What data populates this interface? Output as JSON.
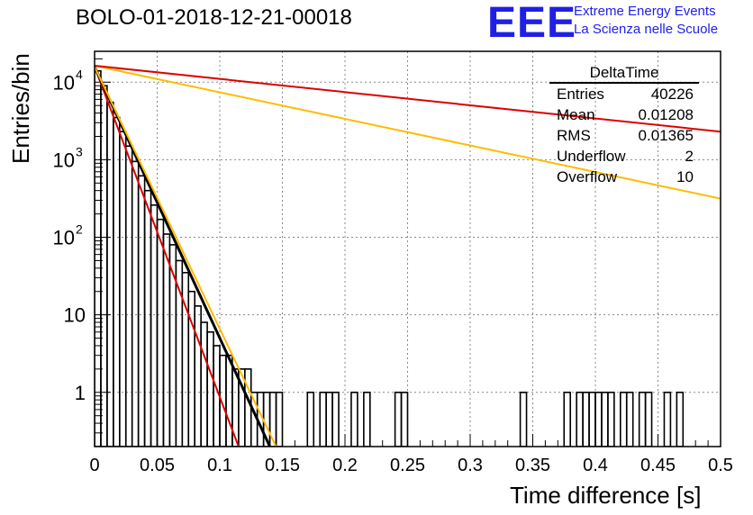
{
  "title": "BOLO-01-2018-12-21-00018",
  "logo": {
    "mark": "EEE",
    "line1": "Extreme Energy Events",
    "line2": "La Scienza nelle Scuole",
    "color": "#1f1fe6"
  },
  "stats": {
    "name": "DeltaTime",
    "rows": [
      {
        "label": "Entries",
        "value": "40226"
      },
      {
        "label": "Mean",
        "value": "0.01208"
      },
      {
        "label": "RMS",
        "value": "0.01365"
      },
      {
        "label": "Underflow",
        "value": "2"
      },
      {
        "label": "Overflow",
        "value": "10"
      }
    ]
  },
  "chart_data": {
    "type": "line",
    "title": "BOLO-01-2018-12-21-00018",
    "xlabel": "Time difference [s]",
    "ylabel": "Entries/bin",
    "xlim": [
      0,
      0.5
    ],
    "ylim": [
      0.2,
      25000
    ],
    "yscale": "log",
    "grid": true,
    "xticks": [
      "0",
      "0.05",
      "0.1",
      "0.15",
      "0.2",
      "0.25",
      "0.3",
      "0.35",
      "0.4",
      "0.45",
      "0.5"
    ],
    "yticks": [
      {
        "value": 1,
        "label": "1"
      },
      {
        "value": 10,
        "label": "10"
      },
      {
        "value": 100,
        "label": "10",
        "exp": "2"
      },
      {
        "value": 1000,
        "label": "10",
        "exp": "3"
      },
      {
        "value": 10000,
        "label": "10",
        "exp": "4"
      }
    ],
    "histogram": {
      "bin_width": 0.005,
      "color": "#000000",
      "x": [
        0.0,
        0.005,
        0.01,
        0.015,
        0.02,
        0.025,
        0.03,
        0.035,
        0.04,
        0.045,
        0.05,
        0.055,
        0.06,
        0.065,
        0.07,
        0.075,
        0.08,
        0.085,
        0.09,
        0.095,
        0.1,
        0.105,
        0.11,
        0.115,
        0.12,
        0.125,
        0.13,
        0.135,
        0.14,
        0.145,
        0.17,
        0.18,
        0.185,
        0.19,
        0.205,
        0.215,
        0.24,
        0.245,
        0.34,
        0.375,
        0.385,
        0.39,
        0.395,
        0.4,
        0.405,
        0.41,
        0.42,
        0.425,
        0.435,
        0.44,
        0.455,
        0.465
      ],
      "y": [
        14000,
        9000,
        5500,
        3500,
        2300,
        1500,
        950,
        620,
        400,
        260,
        170,
        110,
        80,
        50,
        35,
        20,
        13,
        8,
        6,
        4,
        3,
        3,
        2,
        2,
        2,
        1,
        1,
        1,
        1,
        1,
        1,
        1,
        1,
        1,
        1,
        1,
        1,
        1,
        1,
        1,
        1,
        1,
        1,
        1,
        1,
        1,
        1,
        1,
        1,
        1,
        1,
        1
      ]
    },
    "fits": [
      {
        "color": "#dd0000",
        "width": 2,
        "points": [
          [
            0.0,
            15800
          ],
          [
            0.115,
            0.2
          ]
        ]
      },
      {
        "color": "#000000",
        "width": 3,
        "points": [
          [
            0.0,
            15800
          ],
          [
            0.14,
            0.2
          ]
        ]
      },
      {
        "color": "#ffbb00",
        "width": 2,
        "points": [
          [
            0.0,
            15800
          ],
          [
            0.145,
            0.2
          ]
        ]
      },
      {
        "color": "#ffbb00",
        "width": 2,
        "points": [
          [
            0.0,
            16300
          ],
          [
            0.5,
            315
          ]
        ]
      },
      {
        "color": "#dd0000",
        "width": 2,
        "points": [
          [
            0.0,
            16300
          ],
          [
            0.5,
            2300
          ]
        ]
      }
    ]
  }
}
